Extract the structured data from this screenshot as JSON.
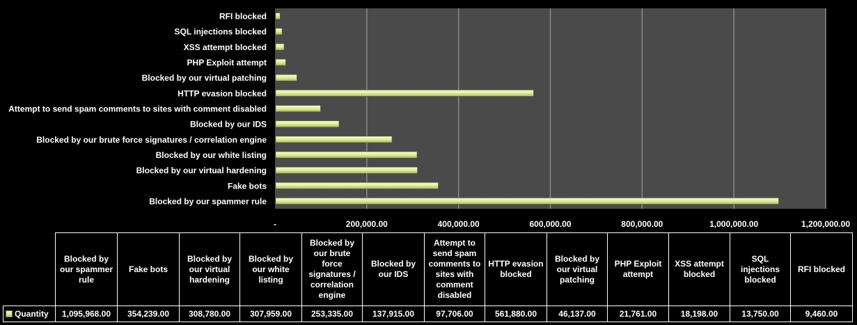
{
  "chart_data": {
    "type": "bar",
    "orientation": "horizontal",
    "categories": [
      "Blocked by our spammer rule",
      "Fake bots",
      "Blocked by our virtual hardening",
      "Blocked by our white listing",
      "Blocked by our brute force signatures / correlation engine",
      "Blocked by our IDS",
      "Attempt to send spam comments to sites with comment disabled",
      "HTTP evasion blocked",
      "Blocked by our virtual patching",
      "PHP Exploit attempt",
      "XSS attempt blocked",
      "SQL injections blocked",
      "RFI blocked"
    ],
    "series": [
      {
        "name": "Quantity",
        "values": [
          1095968,
          354239,
          308780,
          307959,
          253335,
          137915,
          97706,
          561880,
          46137,
          21761,
          18198,
          13750,
          9460
        ],
        "value_labels": [
          "1,095,968.00",
          "354,239.00",
          "308,780.00",
          "307,959.00",
          "253,335.00",
          "137,915.00",
          "97,706.00",
          "561,880.00",
          "46,137.00",
          "21,761.00",
          "18,198.00",
          "13,750.00",
          "9,460.00"
        ]
      }
    ],
    "table_headers": [
      "Blocked by our spammer rule",
      "Fake bots",
      "Blocked by our virtual hardening",
      "Blocked by our white listing",
      "Blocked by our brute force signatures / correlation engine",
      "Blocked by our IDS",
      "Attempt to send spam comments to sites with comment disabled",
      "HTTP evasion blocked",
      "Blocked by our virtual patching",
      "PHP Exploit attempt",
      "XSS attempt blocked",
      "SQL injections blocked",
      "RFI blocked"
    ],
    "xlim": [
      0,
      1200000
    ],
    "x_ticks": [
      0,
      200000,
      400000,
      600000,
      800000,
      1000000,
      1200000
    ],
    "x_tick_labels": [
      "-",
      "200,000.00",
      "400,000.00",
      "600,000.00",
      "800,000.00",
      "1,000,000.00",
      "1,200,000.00"
    ],
    "grid": true,
    "legend": "data-table",
    "colors": {
      "background": "#000000",
      "plot_area": "#4a4a4a",
      "gridline": "#8a8a8a",
      "bar_light": "#f4fbd2",
      "bar_dark": "#a9bf5e"
    }
  }
}
